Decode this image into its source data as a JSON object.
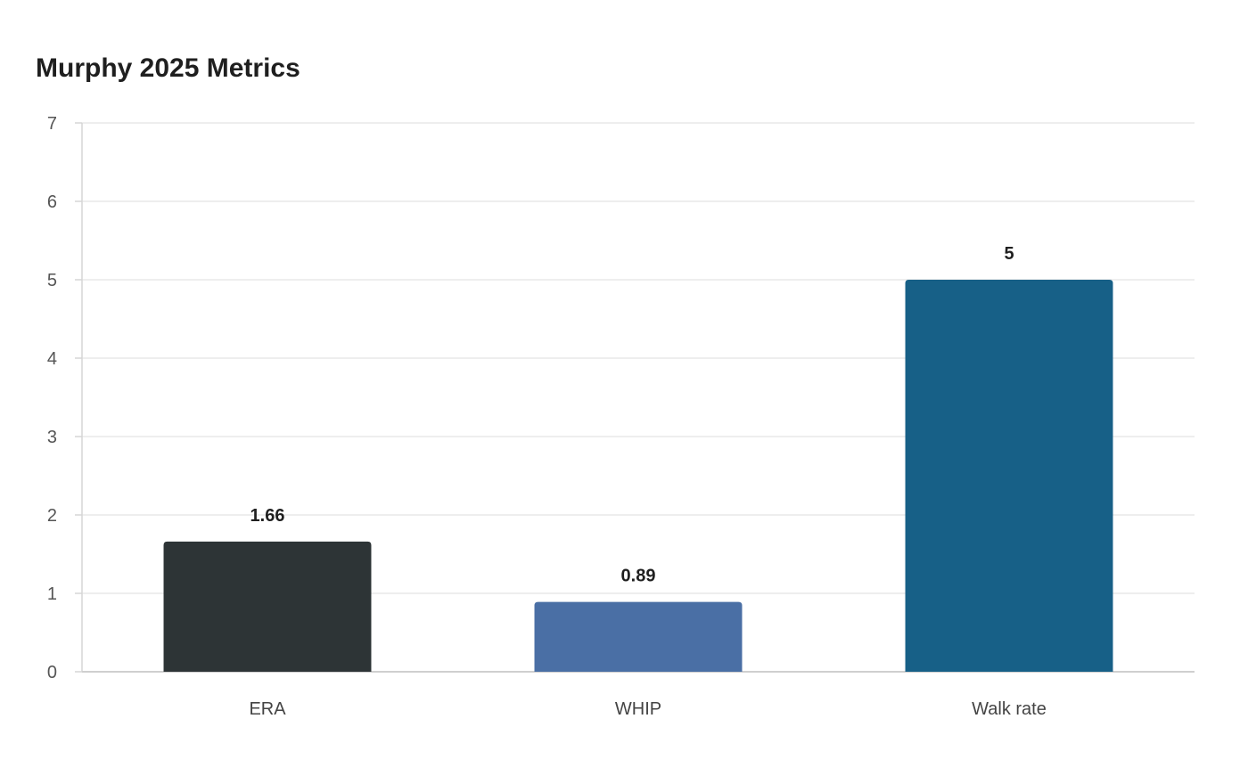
{
  "chart_data": {
    "type": "bar",
    "title": "Murphy 2025 Metrics",
    "xlabel": "",
    "ylabel": "",
    "categories": [
      "ERA",
      "WHIP",
      "Walk rate"
    ],
    "values": [
      1.66,
      0.89,
      5
    ],
    "value_labels": [
      "1.66",
      "0.89",
      "5"
    ],
    "colors": [
      "#2d3436",
      "#4a6fa5",
      "#176087"
    ],
    "ylim": [
      0,
      7
    ],
    "yticks": [
      0,
      1,
      2,
      3,
      4,
      5,
      6,
      7
    ],
    "grid": true,
    "legend": "none"
  }
}
